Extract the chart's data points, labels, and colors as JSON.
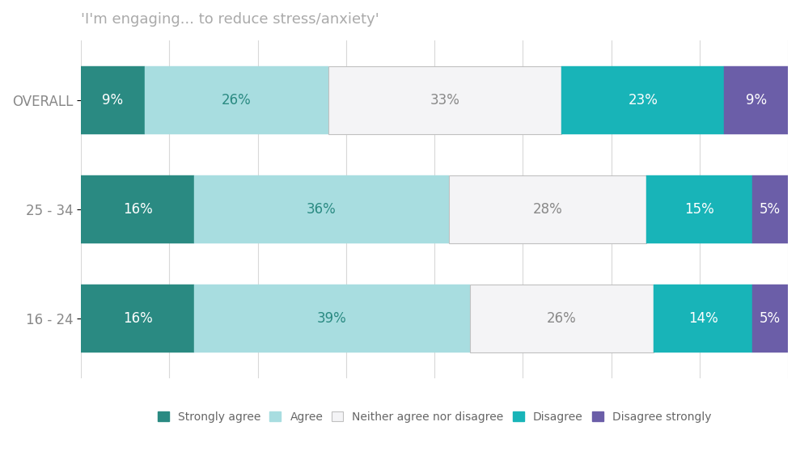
{
  "title": "'I'm engaging... to reduce stress/anxiety'",
  "categories": [
    "OVERALL",
    "25 - 34",
    "16 - 24"
  ],
  "segments": {
    "Strongly agree": [
      9,
      16,
      16
    ],
    "Agree": [
      26,
      36,
      39
    ],
    "Neither agree nor disagree": [
      33,
      28,
      26
    ],
    "Disagree": [
      23,
      15,
      14
    ],
    "Disagree strongly": [
      9,
      5,
      5
    ]
  },
  "colors": {
    "Strongly agree": "#2a8a82",
    "Agree": "#a8dde0",
    "Neither agree nor disagree": "#f4f4f6",
    "Disagree": "#18b4b8",
    "Disagree strongly": "#6b5ea8"
  },
  "text_colors": {
    "Strongly agree": "white",
    "Agree": "#2a8a82",
    "Neither agree nor disagree": "#888888",
    "Disagree": "white",
    "Disagree strongly": "white"
  },
  "bar_height": 0.62,
  "background_color": "#ffffff",
  "title_color": "#aaaaaa",
  "title_fontsize": 13,
  "label_fontsize": 12,
  "tick_fontsize": 12,
  "legend_fontsize": 10,
  "grid_color": "#d8d8d8",
  "border_color": "#c0c0c0"
}
